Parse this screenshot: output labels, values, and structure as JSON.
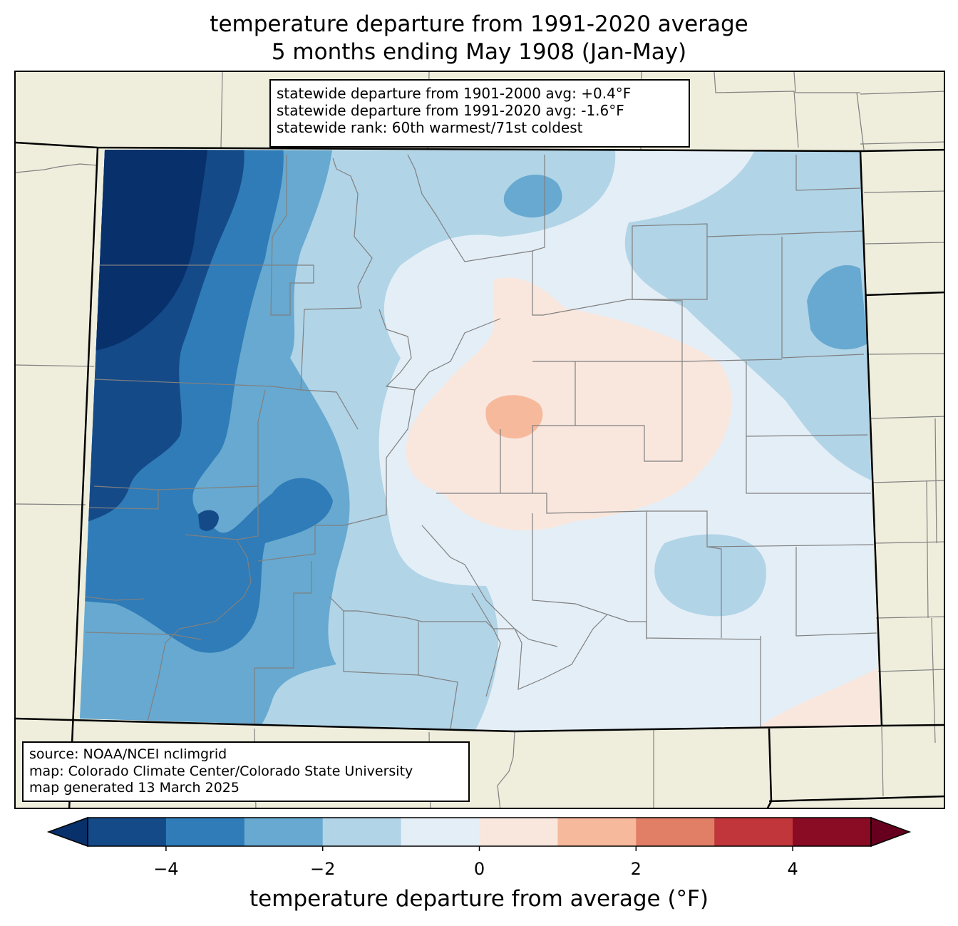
{
  "title": {
    "line1": "temperature departure from 1991-2020 average",
    "line2": "5 months ending May 1908 (Jan-May)"
  },
  "stats": {
    "line1": "statewide departure from 1901-2000 avg: +0.4°F",
    "line2": "statewide departure from 1991-2020 avg: -1.6°F",
    "line3": "statewide rank: 60th warmest/71st coldest"
  },
  "source": {
    "line1": "source: NOAA/NCEI nclimgrid",
    "line2": "map: Colorado Climate Center/Colorado State University",
    "line3": "map generated 13 March 2025"
  },
  "colorbar": {
    "label": "temperature departure from average (°F)",
    "ticks": [
      {
        "value": -4,
        "text": "−4"
      },
      {
        "value": -2,
        "text": "−2"
      },
      {
        "value": 0,
        "text": "0"
      },
      {
        "value": 2,
        "text": "2"
      },
      {
        "value": 4,
        "text": "4"
      }
    ],
    "bins": [
      {
        "from": -5,
        "to": -4,
        "color": "#154a89"
      },
      {
        "from": -4,
        "to": -3,
        "color": "#2f7cb8"
      },
      {
        "from": -3,
        "to": -2,
        "color": "#67a9d0"
      },
      {
        "from": -2,
        "to": -1,
        "color": "#b1d4e7"
      },
      {
        "from": -1,
        "to": 0,
        "color": "#e4eef6"
      },
      {
        "from": 0,
        "to": 1,
        "color": "#f9e7de"
      },
      {
        "from": 1,
        "to": 2,
        "color": "#f7b99c"
      },
      {
        "from": 2,
        "to": 3,
        "color": "#e07e66"
      },
      {
        "from": 3,
        "to": 4,
        "color": "#c0363b"
      },
      {
        "from": 4,
        "to": 5,
        "color": "#8a0b24"
      }
    ],
    "under_color": "#08306b",
    "over_color": "#67001f",
    "range": [
      -5,
      5
    ]
  },
  "colors": {
    "land": "#efeedd",
    "state_border": "#000000",
    "county_border": "#808080"
  }
}
